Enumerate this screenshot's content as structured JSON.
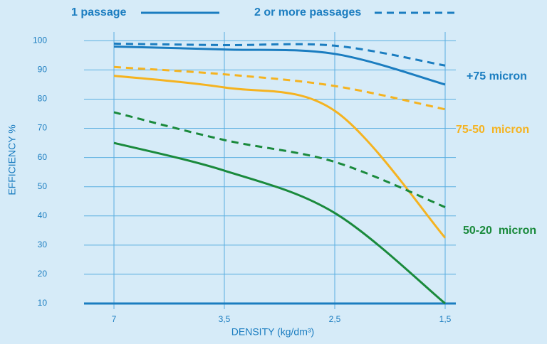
{
  "chart_data": {
    "type": "line",
    "categories": [
      "7",
      "3,5",
      "2,5",
      "1,5"
    ],
    "x_label": "DENSITY (kg/dm³)",
    "y_label": "EFFICIENCY %",
    "ylim": [
      10,
      103
    ],
    "yticks": [
      10,
      20,
      30,
      40,
      50,
      60,
      70,
      80,
      90,
      100
    ],
    "grid": true,
    "legend": [
      {
        "label": "1 passage",
        "dashed": false
      },
      {
        "label": "2 or more passages",
        "dashed": true
      }
    ],
    "groups": [
      {
        "label": "+75 micron",
        "color": "#1b7dc0"
      },
      {
        "label": "75-50  micron",
        "color": "#f5b320"
      },
      {
        "label": "50-20  micron",
        "color": "#1a8a3c"
      }
    ],
    "series": [
      {
        "group": 0,
        "style": 0,
        "values": [
          98,
          97,
          95.5,
          85
        ]
      },
      {
        "group": 0,
        "style": 1,
        "values": [
          99,
          98.5,
          98.3,
          91.5
        ]
      },
      {
        "group": 1,
        "style": 0,
        "values": [
          88,
          84,
          76,
          32.5
        ]
      },
      {
        "group": 1,
        "style": 1,
        "values": [
          91,
          88.5,
          84.5,
          76.5
        ]
      },
      {
        "group": 2,
        "style": 0,
        "values": [
          65,
          55.5,
          41,
          10
        ]
      },
      {
        "group": 2,
        "style": 1,
        "values": [
          75.5,
          66,
          58.5,
          43
        ]
      }
    ]
  }
}
